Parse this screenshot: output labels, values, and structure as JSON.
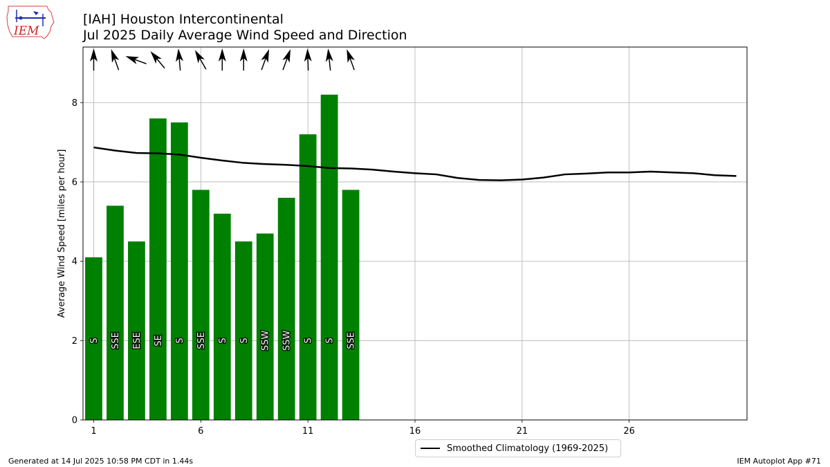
{
  "header": {
    "title_line1": "[IAH] Houston Intercontinental",
    "title_line2": "Jul 2025 Daily Average Wind Speed and Direction"
  },
  "logo": {
    "text": "IEM"
  },
  "footer": {
    "generated": "Generated at 14 Jul 2025 10:58 PM CDT in 1.44s",
    "app": "IEM Autoplot App #71"
  },
  "legend": {
    "label": "Smoothed Climatology (1969-2025)"
  },
  "colors": {
    "bar": "#008000",
    "climo": "#000000",
    "grid": "#b0b0b0",
    "arrow": "#000000"
  },
  "chart_data": {
    "type": "bar",
    "ylabel": "Average Wind Speed [miles per hour]",
    "xlim": [
      0.5,
      31.5
    ],
    "ylim": [
      0,
      9.4
    ],
    "xticks": [
      1,
      6,
      11,
      16,
      21,
      26
    ],
    "yticks": [
      0,
      2,
      4,
      6,
      8
    ],
    "grid": true,
    "legend_position": "bottom-center",
    "days": [
      1,
      2,
      3,
      4,
      5,
      6,
      7,
      8,
      9,
      10,
      11,
      12,
      13
    ],
    "values": [
      4.1,
      5.4,
      4.5,
      7.6,
      7.5,
      5.8,
      5.2,
      4.5,
      4.7,
      5.6,
      7.2,
      8.2,
      5.8
    ],
    "directions": [
      "S",
      "SSE",
      "ESE",
      "SE",
      "S",
      "SSE",
      "S",
      "S",
      "SSW",
      "SSW",
      "S",
      "S",
      "SSE"
    ],
    "direction_degrees": [
      180,
      160,
      110,
      140,
      175,
      150,
      180,
      180,
      200,
      200,
      178,
      174,
      160
    ],
    "climatology": {
      "name": "Smoothed Climatology (1969-2025)",
      "x": [
        1,
        2,
        3,
        4,
        5,
        6,
        7,
        8,
        9,
        10,
        11,
        12,
        13,
        14,
        15,
        16,
        17,
        18,
        19,
        20,
        21,
        22,
        23,
        24,
        25,
        26,
        27,
        28,
        29,
        30,
        31
      ],
      "y": [
        6.87,
        6.79,
        6.73,
        6.72,
        6.69,
        6.61,
        6.54,
        6.48,
        6.45,
        6.43,
        6.4,
        6.35,
        6.34,
        6.31,
        6.26,
        6.22,
        6.19,
        6.1,
        6.05,
        6.04,
        6.06,
        6.11,
        6.19,
        6.21,
        6.24,
        6.24,
        6.26,
        6.24,
        6.22,
        6.17,
        6.15
      ]
    }
  }
}
